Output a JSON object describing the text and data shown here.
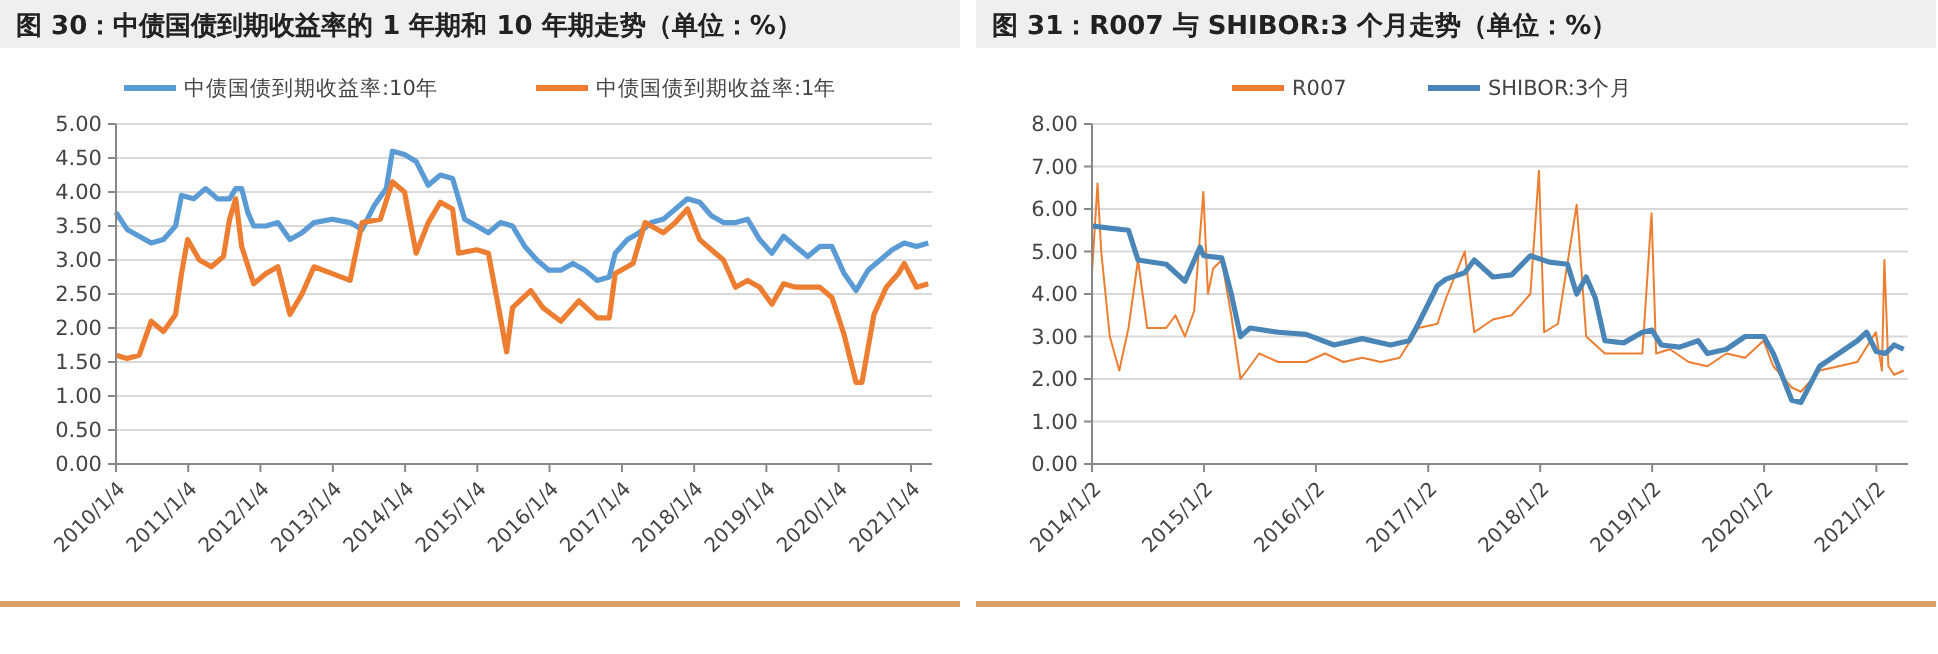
{
  "chart_data": [
    {
      "type": "line",
      "title": "图 30：中债国债到期收益率的 1 年期和 10 年期走势（单位：%）",
      "legend": "top",
      "grid": "y",
      "ylim": [
        0,
        5
      ],
      "yticks": [
        {
          "value": 0,
          "label": "0.00"
        },
        {
          "value": 0.5,
          "label": "0.50"
        },
        {
          "value": 1,
          "label": "1.00"
        },
        {
          "value": 1.5,
          "label": "1.50"
        },
        {
          "value": 2,
          "label": "2.00"
        },
        {
          "value": 2.5,
          "label": "2.50"
        },
        {
          "value": 3,
          "label": "3.00"
        },
        {
          "value": 3.5,
          "label": "3.50"
        },
        {
          "value": 4,
          "label": "4.00"
        },
        {
          "value": 4.5,
          "label": "4.50"
        },
        {
          "value": 5,
          "label": "5.00"
        }
      ],
      "xlim": [
        "2010-01-04",
        "2021-04-20"
      ],
      "xticks": [
        {
          "value": "2010-01-04",
          "label": "2010/1/4"
        },
        {
          "value": "2011-01-04",
          "label": "2011/1/4"
        },
        {
          "value": "2012-01-04",
          "label": "2012/1/4"
        },
        {
          "value": "2013-01-04",
          "label": "2013/1/4"
        },
        {
          "value": "2014-01-04",
          "label": "2014/1/4"
        },
        {
          "value": "2015-01-04",
          "label": "2015/1/4"
        },
        {
          "value": "2016-01-04",
          "label": "2016/1/4"
        },
        {
          "value": "2017-01-04",
          "label": "2017/1/4"
        },
        {
          "value": "2018-01-04",
          "label": "2018/1/4"
        },
        {
          "value": "2019-01-04",
          "label": "2019/1/4"
        },
        {
          "value": "2020-01-04",
          "label": "2020/1/4"
        },
        {
          "value": "2021-01-04",
          "label": "2021/1/4"
        }
      ],
      "series": [
        {
          "name": "中债国债到期收益率:10年",
          "color": "#5b9bd5",
          "x": [
            "2010-01-04",
            "2010-03",
            "2010-05",
            "2010-07",
            "2010-09",
            "2010-11",
            "2010-12",
            "2011-02",
            "2011-04",
            "2011-06",
            "2011-08",
            "2011-09",
            "2011-10",
            "2011-11",
            "2011-12",
            "2012-02",
            "2012-04",
            "2012-06",
            "2012-08",
            "2012-10",
            "2013-01",
            "2013-04",
            "2013-06",
            "2013-08",
            "2013-10",
            "2013-11",
            "2014-01",
            "2014-03",
            "2014-05",
            "2014-07",
            "2014-09",
            "2014-11",
            "2015-01",
            "2015-03",
            "2015-05",
            "2015-07",
            "2015-09",
            "2015-11",
            "2016-01",
            "2016-03",
            "2016-05",
            "2016-07",
            "2016-09",
            "2016-11",
            "2016-12",
            "2017-02",
            "2017-04",
            "2017-06",
            "2017-08",
            "2017-10",
            "2017-12",
            "2018-02",
            "2018-04",
            "2018-06",
            "2018-08",
            "2018-10",
            "2018-12",
            "2019-02",
            "2019-04",
            "2019-06",
            "2019-08",
            "2019-10",
            "2019-12",
            "2020-02",
            "2020-04",
            "2020-06",
            "2020-08",
            "2020-10",
            "2020-12",
            "2021-02",
            "2021-04"
          ],
          "values": [
            3.7,
            3.45,
            3.35,
            3.25,
            3.3,
            3.5,
            3.95,
            3.9,
            4.05,
            3.9,
            3.9,
            4.05,
            4.05,
            3.7,
            3.5,
            3.5,
            3.55,
            3.3,
            3.4,
            3.55,
            3.6,
            3.55,
            3.45,
            3.8,
            4.05,
            4.6,
            4.55,
            4.45,
            4.1,
            4.25,
            4.2,
            3.6,
            3.5,
            3.4,
            3.55,
            3.5,
            3.2,
            3.0,
            2.85,
            2.85,
            2.95,
            2.85,
            2.7,
            2.75,
            3.1,
            3.3,
            3.4,
            3.55,
            3.6,
            3.75,
            3.9,
            3.85,
            3.65,
            3.55,
            3.55,
            3.6,
            3.3,
            3.1,
            3.35,
            3.2,
            3.05,
            3.2,
            3.2,
            2.8,
            2.55,
            2.85,
            3.0,
            3.15,
            3.25,
            3.2,
            3.25
          ]
        },
        {
          "name": "中债国债到期收益率:1年",
          "color": "#ed7d31",
          "x": [
            "2010-01-04",
            "2010-03",
            "2010-05",
            "2010-07",
            "2010-09",
            "2010-11",
            "2010-12",
            "2011-01",
            "2011-03",
            "2011-05",
            "2011-07",
            "2011-08",
            "2011-09",
            "2011-10",
            "2011-12",
            "2012-02",
            "2012-04",
            "2012-06",
            "2012-08",
            "2012-10",
            "2013-01",
            "2013-04",
            "2013-06",
            "2013-09",
            "2013-11",
            "2014-01",
            "2014-03",
            "2014-05",
            "2014-07",
            "2014-09",
            "2014-10",
            "2015-01",
            "2015-03",
            "2015-05",
            "2015-06",
            "2015-07",
            "2015-10",
            "2015-12",
            "2016-03",
            "2016-06",
            "2016-09",
            "2016-11",
            "2016-12",
            "2017-03",
            "2017-05",
            "2017-08",
            "2017-10",
            "2017-12",
            "2018-02",
            "2018-04",
            "2018-06",
            "2018-08",
            "2018-10",
            "2018-12",
            "2019-02",
            "2019-04",
            "2019-06",
            "2019-08",
            "2019-10",
            "2019-12",
            "2020-02",
            "2020-04",
            "2020-05",
            "2020-07",
            "2020-09",
            "2020-11",
            "2020-12",
            "2021-02",
            "2021-04"
          ],
          "values": [
            1.6,
            1.55,
            1.6,
            2.1,
            1.95,
            2.2,
            2.8,
            3.3,
            3.0,
            2.9,
            3.05,
            3.6,
            3.9,
            3.2,
            2.65,
            2.8,
            2.9,
            2.2,
            2.5,
            2.9,
            2.8,
            2.7,
            3.55,
            3.6,
            4.15,
            4.0,
            3.1,
            3.55,
            3.85,
            3.75,
            3.1,
            3.15,
            3.1,
            2.15,
            1.65,
            2.3,
            2.55,
            2.3,
            2.1,
            2.4,
            2.15,
            2.15,
            2.8,
            2.95,
            3.55,
            3.4,
            3.55,
            3.75,
            3.3,
            3.15,
            3.0,
            2.6,
            2.7,
            2.6,
            2.35,
            2.65,
            2.6,
            2.6,
            2.6,
            2.45,
            1.9,
            1.2,
            1.2,
            2.2,
            2.6,
            2.8,
            2.95,
            2.6,
            2.65
          ]
        }
      ]
    },
    {
      "type": "line",
      "title": "图 31：R007 与 SHIBOR:3 个月走势（单位：%）",
      "legend": "top",
      "grid": "y",
      "ylim": [
        0,
        8
      ],
      "yticks": [
        {
          "value": 0,
          "label": "0.00"
        },
        {
          "value": 1,
          "label": "1.00"
        },
        {
          "value": 2,
          "label": "2.00"
        },
        {
          "value": 3,
          "label": "3.00"
        },
        {
          "value": 4,
          "label": "4.00"
        },
        {
          "value": 5,
          "label": "5.00"
        },
        {
          "value": 6,
          "label": "6.00"
        },
        {
          "value": 7,
          "label": "7.00"
        },
        {
          "value": 8,
          "label": "8.00"
        }
      ],
      "xlim": [
        "2014-01-02",
        "2021-04-15"
      ],
      "xticks": [
        {
          "value": "2014-01-02",
          "label": "2014/1/2"
        },
        {
          "value": "2015-01-02",
          "label": "2015/1/2"
        },
        {
          "value": "2016-01-02",
          "label": "2016/1/2"
        },
        {
          "value": "2017-01-02",
          "label": "2017/1/2"
        },
        {
          "value": "2018-01-02",
          "label": "2018/1/2"
        },
        {
          "value": "2019-01-02",
          "label": "2019/1/2"
        },
        {
          "value": "2020-01-02",
          "label": "2020/1/2"
        },
        {
          "value": "2021-01-02",
          "label": "2021/1/2"
        }
      ],
      "series": [
        {
          "name": "R007",
          "color": "#ed7d31",
          "x": [
            "2014-01-02",
            "2014-01-20",
            "2014-02",
            "2014-03",
            "2014-04",
            "2014-05",
            "2014-06",
            "2014-07",
            "2014-09",
            "2014-10",
            "2014-11",
            "2014-12",
            "2014-12-31",
            "2015-01-15",
            "2015-02",
            "2015-03",
            "2015-04",
            "2015-05",
            "2015-06",
            "2015-07",
            "2015-09",
            "2015-12",
            "2016-02",
            "2016-04",
            "2016-06",
            "2016-08",
            "2016-10",
            "2016-12",
            "2017-02",
            "2017-03",
            "2017-05",
            "2017-06",
            "2017-08",
            "2017-10",
            "2017-12",
            "2017-12-29",
            "2018-01-15",
            "2018-03",
            "2018-05",
            "2018-06",
            "2018-08",
            "2018-10",
            "2018-12",
            "2018-12-31",
            "2019-01-15",
            "2019-03",
            "2019-05",
            "2019-07",
            "2019-09",
            "2019-11",
            "2019-12-31",
            "2020-02",
            "2020-04",
            "2020-05",
            "2020-07",
            "2020-09",
            "2020-11",
            "2020-12-31",
            "2021-01-20",
            "2021-01-28",
            "2021-02-10",
            "2021-03",
            "2021-04"
          ],
          "values": [
            4.5,
            6.6,
            5.0,
            3.0,
            2.2,
            3.2,
            4.8,
            3.2,
            3.2,
            3.5,
            3.0,
            3.6,
            6.4,
            4.0,
            4.6,
            4.8,
            3.5,
            2.0,
            2.3,
            2.6,
            2.4,
            2.4,
            2.6,
            2.4,
            2.5,
            2.4,
            2.5,
            3.2,
            3.3,
            3.9,
            5.0,
            3.1,
            3.4,
            3.5,
            4.0,
            6.9,
            3.1,
            3.3,
            6.1,
            3.0,
            2.6,
            2.6,
            2.6,
            5.9,
            2.6,
            2.7,
            2.4,
            2.3,
            2.6,
            2.5,
            2.9,
            2.3,
            1.8,
            1.7,
            2.2,
            2.3,
            2.4,
            3.1,
            2.2,
            4.8,
            2.3,
            2.1,
            2.2
          ]
        },
        {
          "name": "SHIBOR:3个月",
          "color": "#4a85b8",
          "x": [
            "2014-01-02",
            "2014-03",
            "2014-05",
            "2014-06",
            "2014-09",
            "2014-11",
            "2014-12-20",
            "2015-01",
            "2015-03",
            "2015-04",
            "2015-05",
            "2015-06",
            "2015-09",
            "2015-12",
            "2016-03",
            "2016-06",
            "2016-09",
            "2016-11",
            "2016-12",
            "2017-02",
            "2017-03",
            "2017-05",
            "2017-06",
            "2017-08",
            "2017-10",
            "2017-12",
            "2018-02",
            "2018-04",
            "2018-05",
            "2018-06",
            "2018-07",
            "2018-08",
            "2018-10",
            "2018-12",
            "2019-01",
            "2019-02",
            "2019-04",
            "2019-06",
            "2019-07",
            "2019-09",
            "2019-11",
            "2020-01",
            "2020-02",
            "2020-04",
            "2020-05",
            "2020-07",
            "2020-09",
            "2020-11",
            "2020-12",
            "2021-01",
            "2021-02",
            "2021-03",
            "2021-04"
          ],
          "values": [
            5.6,
            5.55,
            5.5,
            4.8,
            4.7,
            4.3,
            5.1,
            4.9,
            4.85,
            4.0,
            3.0,
            3.2,
            3.1,
            3.05,
            2.8,
            2.95,
            2.8,
            2.9,
            3.3,
            4.2,
            4.35,
            4.5,
            4.8,
            4.4,
            4.45,
            4.9,
            4.75,
            4.7,
            4.0,
            4.4,
            3.9,
            2.9,
            2.85,
            3.1,
            3.15,
            2.8,
            2.75,
            2.9,
            2.6,
            2.7,
            3.0,
            3.0,
            2.6,
            1.5,
            1.45,
            2.3,
            2.6,
            2.9,
            3.1,
            2.65,
            2.6,
            2.8,
            2.7
          ]
        }
      ]
    }
  ]
}
